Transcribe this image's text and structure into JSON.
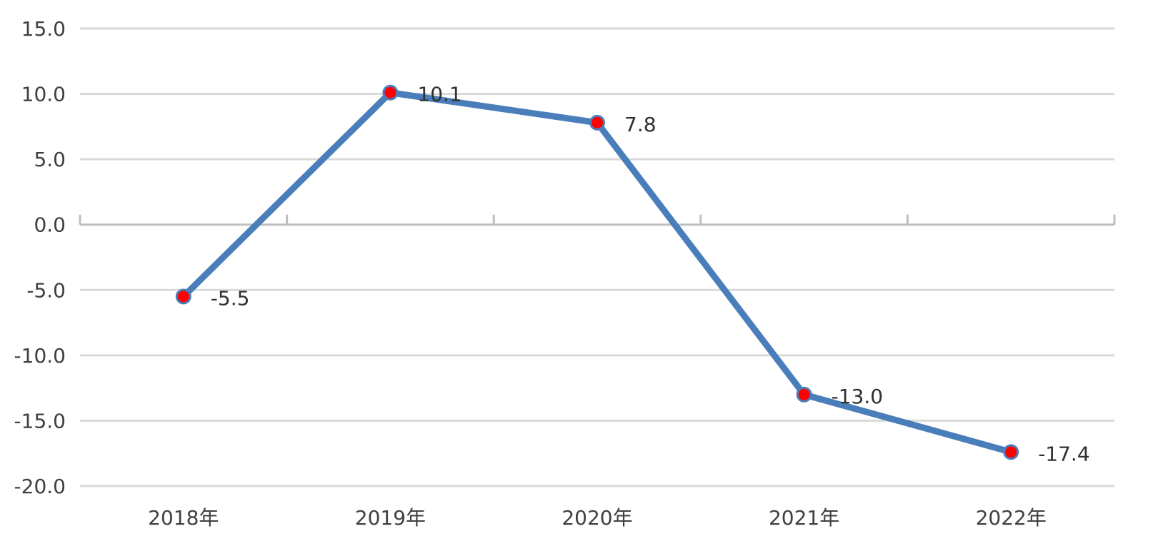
{
  "chart_data": {
    "type": "line",
    "title": "",
    "xlabel": "",
    "ylabel": "",
    "categories": [
      "2018年",
      "2019年",
      "2020年",
      "2021年",
      "2022年"
    ],
    "series": [
      {
        "values": [
          -5.5,
          10.1,
          7.8,
          -13.0,
          -17.4
        ],
        "data_labels": [
          "-5.5",
          "10.1",
          "7.8",
          "-13.0",
          "-17.4"
        ]
      }
    ],
    "ylim": [
      -20,
      15
    ],
    "y_ticks": [
      15,
      10,
      5,
      0,
      -5,
      -10,
      -15,
      -20
    ],
    "y_tick_labels": [
      "15.0",
      "10.0",
      "5.0",
      "0.0",
      "-5.0",
      "-10.0",
      "-15.0",
      "-20.0"
    ],
    "grid": true,
    "legend": "none",
    "colors": {
      "line": "#4a7ebb",
      "marker_fill": "#ff0000",
      "marker_border": "#4a7ebb",
      "grid": "#d9d9d9",
      "axis": "#bfbfbf"
    }
  }
}
